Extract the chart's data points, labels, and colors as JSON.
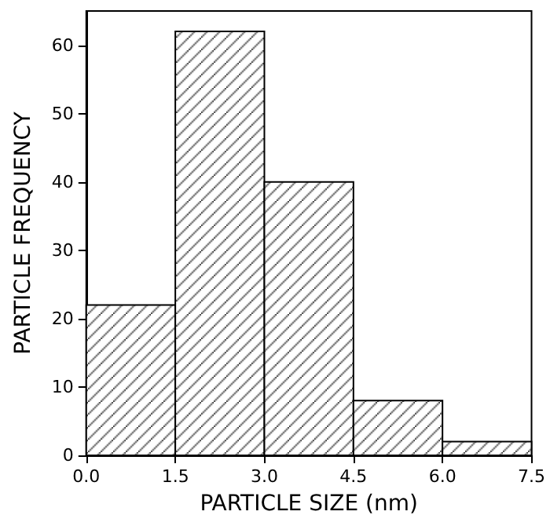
{
  "chart_data": {
    "type": "histogram",
    "xlabel": "PARTICLE SIZE (nm)",
    "ylabel": "PARTICLE FREQUENCY",
    "bins": [
      0,
      1.5,
      3,
      4.5,
      6,
      7.5
    ],
    "values": [
      22,
      62,
      40,
      8,
      2
    ],
    "color": "#000000",
    "xlim": [
      0,
      7.5
    ],
    "xticks": [
      {
        "value": 0,
        "label": "0.0"
      },
      {
        "value": 1.5,
        "label": "1.5"
      },
      {
        "value": 3,
        "label": "3.0"
      },
      {
        "value": 4.5,
        "label": "4.5"
      },
      {
        "value": 6,
        "label": "6.0"
      },
      {
        "value": 7.5,
        "label": "7.5"
      }
    ],
    "ylim": [
      0,
      65
    ],
    "yticks": [
      0,
      10,
      20,
      30,
      40,
      50,
      60
    ],
    "grid": false
  }
}
